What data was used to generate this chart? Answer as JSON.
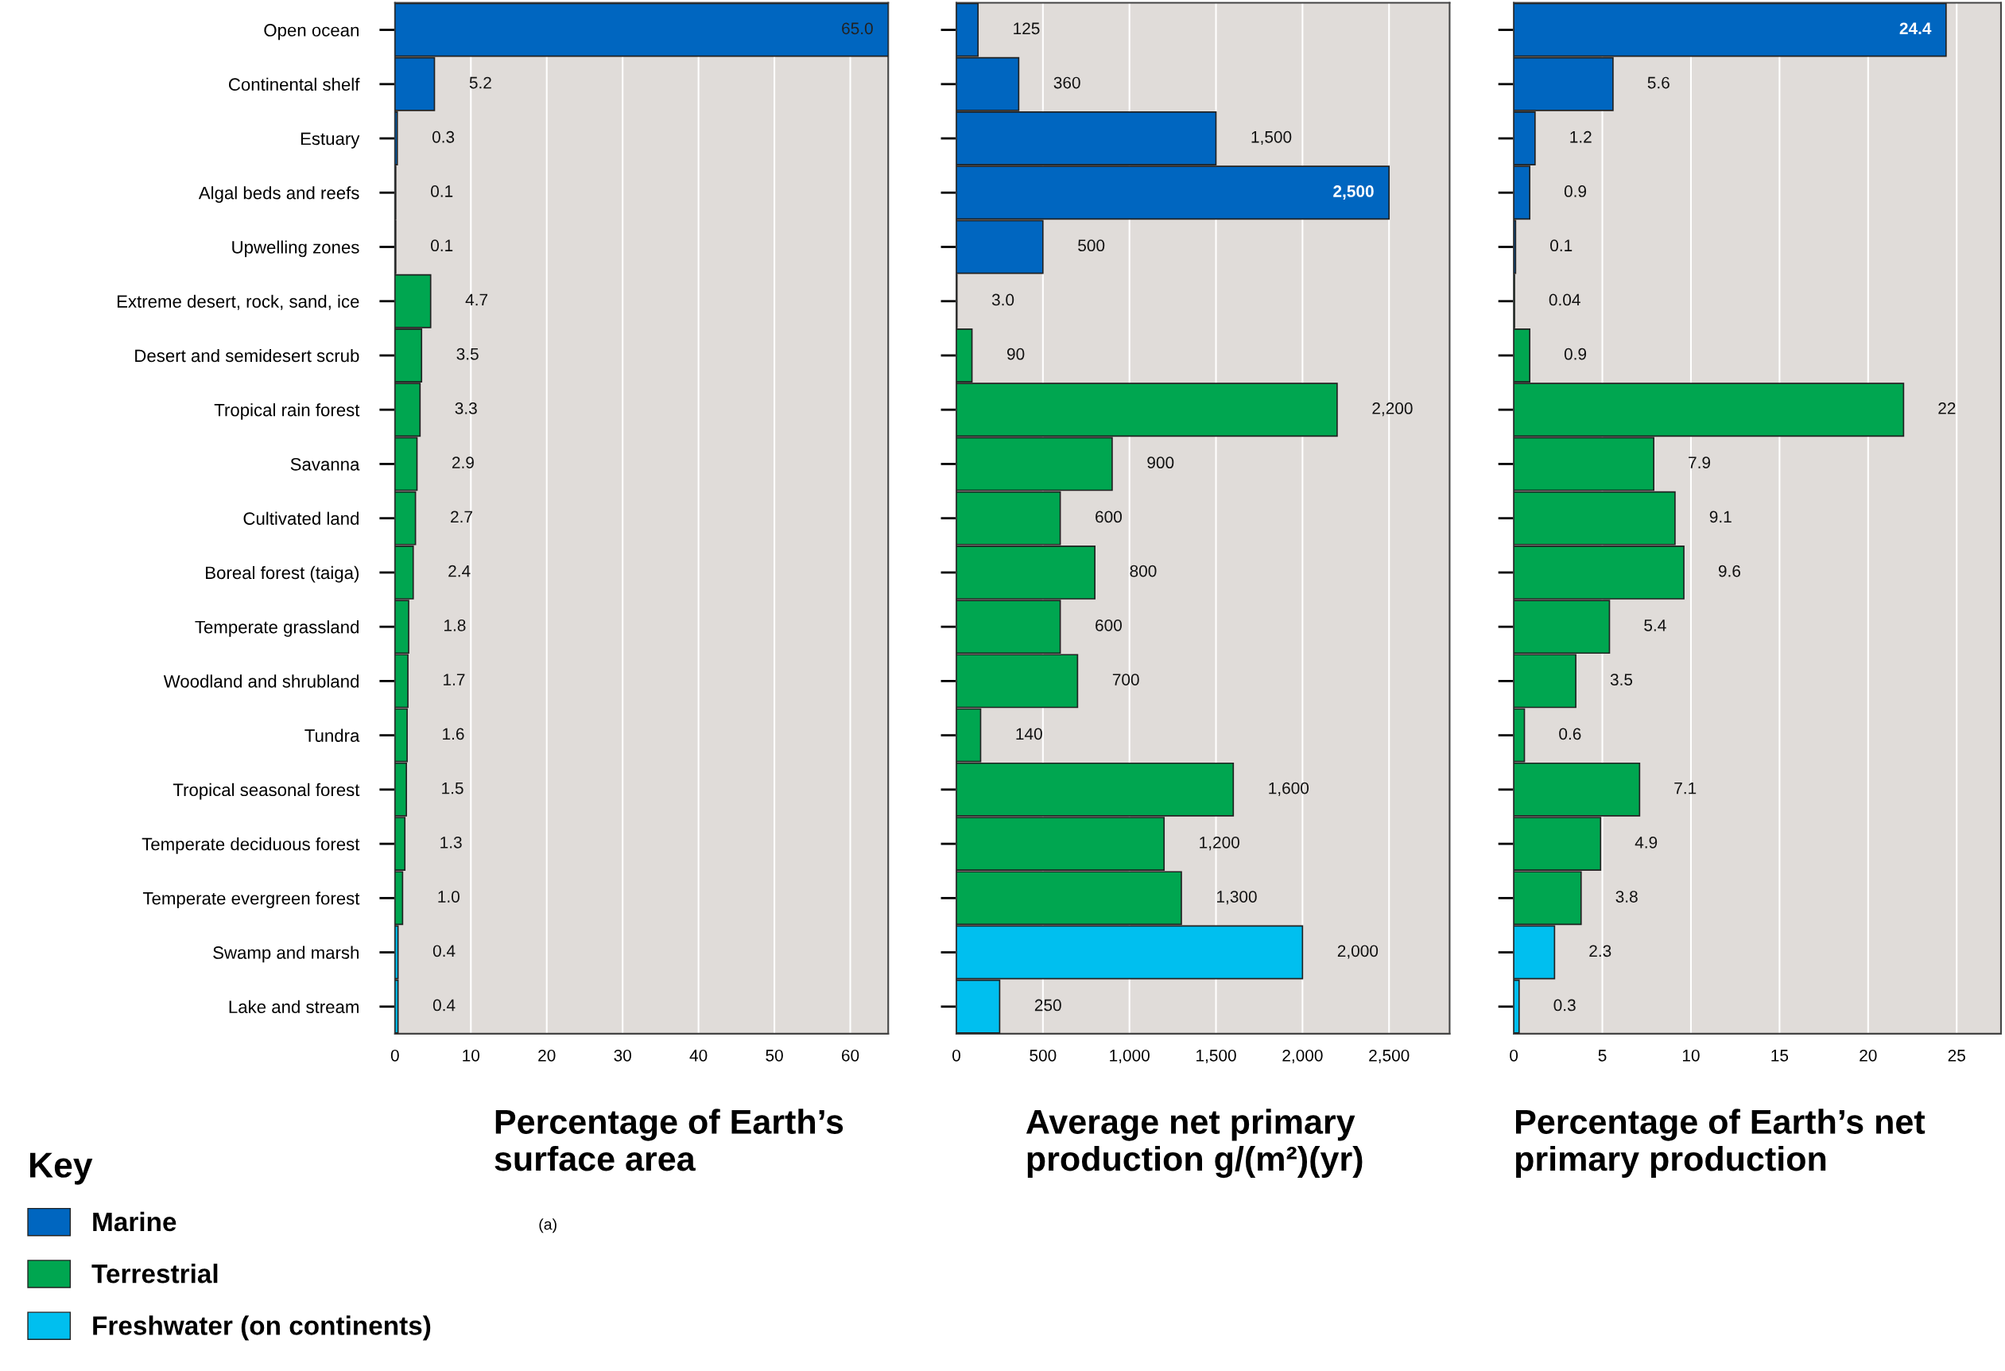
{
  "chart_data": [
    {
      "type": "bar",
      "orientation": "horizontal",
      "xlabel": "Percentage of Earth’s\nsurface area",
      "categories": [
        "Open ocean",
        "Continental shelf",
        "Estuary",
        "Algal beds and reefs",
        "Upwelling zones",
        "Extreme desert, rock, sand, ice",
        "Desert and semidesert scrub",
        "Tropical rain forest",
        "Savanna",
        "Cultivated land",
        "Boreal forest (taiga)",
        "Temperate grassland",
        "Woodland and shrubland",
        "Tundra",
        "Tropical seasonal forest",
        "Temperate deciduous forest",
        "Temperate evergreen forest",
        "Swamp and marsh",
        "Lake and stream"
      ],
      "series": [
        {
          "name": "Marine",
          "color": "#0066c0",
          "values": [
            65.0,
            5.2,
            0.3,
            0.1,
            0.1,
            null,
            null,
            null,
            null,
            null,
            null,
            null,
            null,
            null,
            null,
            null,
            null,
            null,
            null
          ],
          "value_labels": [
            "65.0",
            "5.2",
            "0.3",
            "0.1",
            "0.1",
            null,
            null,
            null,
            null,
            null,
            null,
            null,
            null,
            null,
            null,
            null,
            null,
            null,
            null
          ]
        },
        {
          "name": "Terrestrial",
          "color": "#00a650",
          "values": [
            null,
            null,
            null,
            null,
            null,
            4.7,
            3.5,
            3.3,
            2.9,
            2.7,
            2.4,
            1.8,
            1.7,
            1.6,
            1.5,
            1.3,
            1.0,
            null,
            null
          ],
          "value_labels": [
            null,
            null,
            null,
            null,
            null,
            "4.7",
            "3.5",
            "3.3",
            "2.9",
            "2.7",
            "2.4",
            "1.8",
            "1.7",
            "1.6",
            "1.5",
            "1.3",
            "1.0",
            null,
            null
          ]
        },
        {
          "name": "Freshwater (on continents)",
          "color": "#00bfef",
          "values": [
            null,
            null,
            null,
            null,
            null,
            null,
            null,
            null,
            null,
            null,
            null,
            null,
            null,
            null,
            null,
            null,
            null,
            0.4,
            0.4
          ],
          "value_labels": [
            null,
            null,
            null,
            null,
            null,
            null,
            null,
            null,
            null,
            null,
            null,
            null,
            null,
            null,
            null,
            null,
            null,
            "0.4",
            "0.4"
          ]
        }
      ],
      "xlim": [
        0,
        65
      ],
      "xticks": [
        0,
        10,
        20,
        30,
        40,
        50,
        60
      ],
      "grid": "x",
      "legend": "bottom left",
      "legend_title": "Key",
      "annotations": [
        "(a)"
      ]
    },
    {
      "type": "bar",
      "orientation": "horizontal",
      "xlabel": "Average net primary\nproduction g/(m²)(yr)",
      "categories": [
        null,
        null,
        null,
        null,
        null,
        null,
        null,
        null,
        null,
        null,
        null,
        null,
        null,
        null,
        null,
        null,
        null,
        null,
        null
      ],
      "series": [
        {
          "color": "#0066c0",
          "values": [
            125,
            360,
            1500,
            2500,
            500,
            null,
            null,
            null,
            null,
            null,
            null,
            null,
            null,
            null,
            null,
            null,
            null,
            null,
            null
          ],
          "value_labels": [
            "125",
            "360",
            "1,500",
            "2,500",
            "500",
            null,
            null,
            null,
            null,
            null,
            null,
            null,
            null,
            null,
            null,
            null,
            null,
            null,
            null
          ]
        },
        {
          "color": "#00a650",
          "values": [
            null,
            null,
            null,
            null,
            null,
            3.0,
            90,
            2200,
            900,
            600,
            800,
            600,
            700,
            140,
            1600,
            1200,
            1300,
            null,
            null
          ],
          "value_labels": [
            null,
            null,
            null,
            null,
            null,
            "3.0",
            "90",
            "2,200",
            "900",
            "600",
            "800",
            "600",
            "700",
            "140",
            "1,600",
            "1,200",
            "1,300",
            null,
            null
          ]
        },
        {
          "color": "#00bfef",
          "values": [
            null,
            null,
            null,
            null,
            null,
            null,
            null,
            null,
            null,
            null,
            null,
            null,
            null,
            null,
            null,
            null,
            null,
            2000,
            250
          ],
          "value_labels": [
            null,
            null,
            null,
            null,
            null,
            null,
            null,
            null,
            null,
            null,
            null,
            null,
            null,
            null,
            null,
            null,
            null,
            "2,000",
            "250"
          ]
        }
      ],
      "xlim": [
        0,
        2850
      ],
      "xticks": [
        0,
        {
          "value": 500,
          "label": "500"
        },
        {
          "value": 1000,
          "label": "1,000"
        },
        {
          "value": 1500,
          "label": "1,500"
        },
        {
          "value": 2000,
          "label": "2,000"
        },
        {
          "value": 2500,
          "label": "2,500"
        }
      ],
      "grid": "x",
      "tick_labels": "x"
    },
    {
      "type": "bar",
      "orientation": "horizontal",
      "xlabel": "Percentage of Earth’s net\nprimary production",
      "categories": [
        null,
        null,
        null,
        null,
        null,
        null,
        null,
        null,
        null,
        null,
        null,
        null,
        null,
        null,
        null,
        null,
        null,
        null,
        null
      ],
      "series": [
        {
          "color": "#0066c0",
          "values": [
            24.4,
            5.6,
            1.2,
            0.9,
            0.1,
            null,
            null,
            null,
            null,
            null,
            null,
            null,
            null,
            null,
            null,
            null,
            null,
            null,
            null
          ],
          "value_labels": [
            "24.4",
            "5.6",
            "1.2",
            "0.9",
            "0.1",
            null,
            null,
            null,
            null,
            null,
            null,
            null,
            null,
            null,
            null,
            null,
            null,
            null,
            null
          ]
        },
        {
          "color": "#00a650",
          "values": [
            null,
            null,
            null,
            null,
            null,
            0.04,
            0.9,
            22,
            7.9,
            9.1,
            9.6,
            5.4,
            3.5,
            0.6,
            7.1,
            4.9,
            3.8,
            null,
            null
          ],
          "value_labels": [
            null,
            null,
            null,
            null,
            null,
            "0.04",
            "0.9",
            "22",
            "7.9",
            "9.1",
            "9.6",
            "5.4",
            "3.5",
            "0.6",
            "7.1",
            "4.9",
            "3.8",
            null,
            null
          ]
        },
        {
          "color": "#00bfef",
          "values": [
            null,
            null,
            null,
            null,
            null,
            null,
            null,
            null,
            null,
            null,
            null,
            null,
            null,
            null,
            null,
            null,
            null,
            2.3,
            0.3
          ],
          "value_labels": [
            null,
            null,
            null,
            null,
            null,
            null,
            null,
            null,
            null,
            null,
            null,
            null,
            null,
            null,
            null,
            null,
            null,
            "2.3",
            "0.3"
          ]
        }
      ],
      "xlim": [
        0,
        27.5
      ],
      "xticks": [
        0,
        5,
        10,
        15,
        20,
        25
      ],
      "grid": "x",
      "tick_labels": "x"
    }
  ]
}
